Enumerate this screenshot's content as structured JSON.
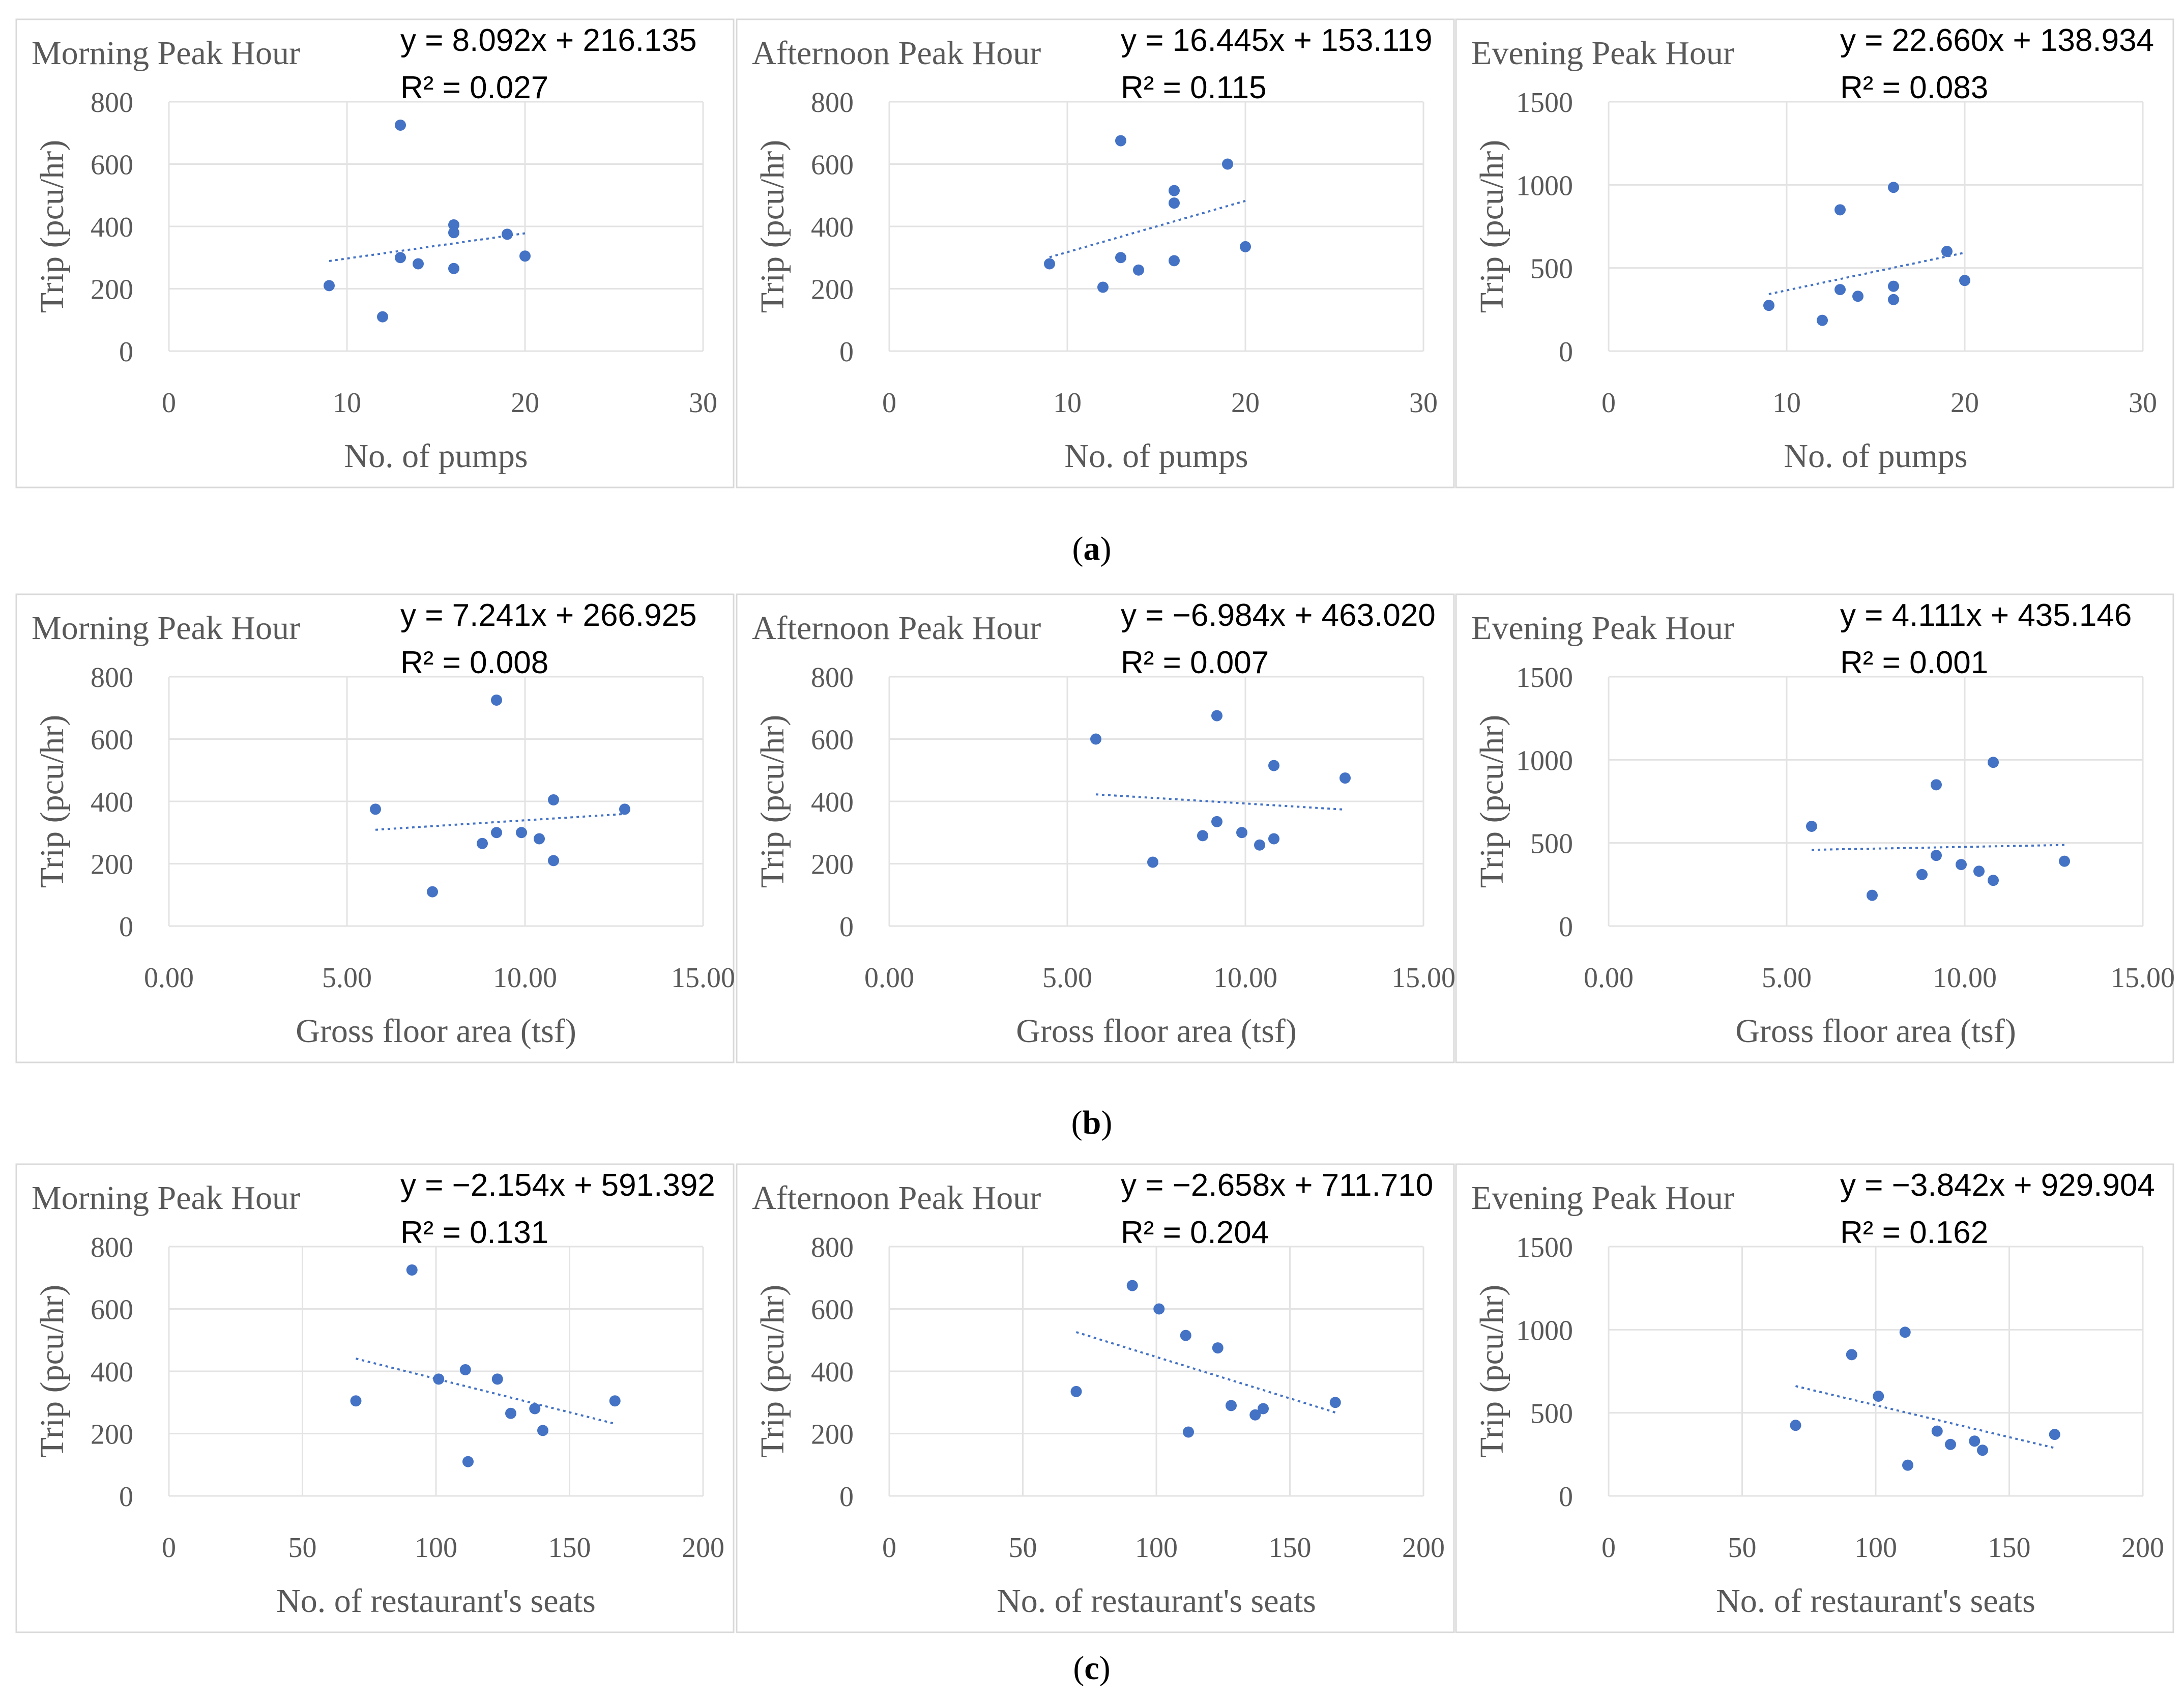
{
  "colors": {
    "point": "#4472c4",
    "trend": "#4472c4"
  },
  "rows": [
    {
      "caption": {
        "letter": "a"
      },
      "charts": [
        {
          "chart_data": {
            "type": "scatter",
            "title": "Morning Peak Hour",
            "equation": "y = 8.092x + 216.135",
            "r2": "R² = 0.027",
            "xlabel": "No. of pumps",
            "ylabel": "Trip (pcu/hr)",
            "xlim": [
              0,
              30
            ],
            "ylim": [
              0,
              800
            ],
            "xticks": [
              "0",
              "10",
              "20",
              "30"
            ],
            "xtick_values": [
              0,
              10,
              20,
              30
            ],
            "yticks": [
              "0",
              "200",
              "400",
              "600",
              "800"
            ],
            "ytick_values": [
              0,
              200,
              400,
              600,
              800
            ],
            "x": [
              9,
              12,
              13,
              13,
              14,
              16,
              16,
              16,
              19,
              20
            ],
            "y": [
              210,
              110,
              725,
              300,
              280,
              405,
              380,
              265,
              375,
              305
            ],
            "trend": {
              "slope": 8.092,
              "intercept": 216.135,
              "x_range": [
                9,
                20
              ]
            }
          }
        },
        {
          "chart_data": {
            "type": "scatter",
            "title": "Afternoon Peak Hour",
            "equation": "y = 16.445x + 153.119",
            "r2": "R² = 0.115",
            "xlabel": "No. of pumps",
            "ylabel": "Trip (pcu/hr)",
            "xlim": [
              0,
              30
            ],
            "ylim": [
              0,
              800
            ],
            "xticks": [
              "0",
              "10",
              "20",
              "30"
            ],
            "xtick_values": [
              0,
              10,
              20,
              30
            ],
            "yticks": [
              "0",
              "200",
              "400",
              "600",
              "800"
            ],
            "ytick_values": [
              0,
              200,
              400,
              600,
              800
            ],
            "x": [
              9,
              12,
              13,
              13,
              14,
              16,
              16,
              16,
              19,
              20
            ],
            "y": [
              280,
              205,
              675,
              300,
              260,
              515,
              475,
              290,
              600,
              335
            ],
            "trend": {
              "slope": 16.445,
              "intercept": 153.119,
              "x_range": [
                9,
                20
              ]
            }
          }
        },
        {
          "chart_data": {
            "type": "scatter",
            "title": "Evening Peak Hour",
            "equation": "y = 22.660x + 138.934",
            "r2": "R² = 0.083",
            "xlabel": "No. of pumps",
            "ylabel": "Trip (pcu/hr)",
            "xlim": [
              0,
              30
            ],
            "ylim": [
              0,
              1500
            ],
            "xticks": [
              "0",
              "10",
              "20",
              "30"
            ],
            "xtick_values": [
              0,
              10,
              20,
              30
            ],
            "yticks": [
              "0",
              "500",
              "1000",
              "1500"
            ],
            "ytick_values": [
              0,
              500,
              1000,
              1500
            ],
            "x": [
              9,
              12,
              13,
              13,
              14,
              16,
              16,
              16,
              19,
              20
            ],
            "y": [
              275,
              185,
              850,
              370,
              330,
              985,
              390,
              310,
              600,
              425
            ],
            "trend": {
              "slope": 22.66,
              "intercept": 138.934,
              "x_range": [
                9,
                20
              ]
            }
          }
        }
      ]
    },
    {
      "caption": {
        "letter": "b"
      },
      "charts": [
        {
          "chart_data": {
            "type": "scatter",
            "title": "Morning Peak Hour",
            "equation": "y = 7.241x + 266.925",
            "r2": "R² = 0.008",
            "xlabel": "Gross floor area (tsf)",
            "ylabel": "Trip (pcu/hr)",
            "xlim": [
              0,
              15
            ],
            "ylim": [
              0,
              800
            ],
            "xticks": [
              "0.00",
              "5.00",
              "10.00",
              "15.00"
            ],
            "xtick_values": [
              0,
              5,
              10,
              15
            ],
            "yticks": [
              "0",
              "200",
              "400",
              "600",
              "800"
            ],
            "ytick_values": [
              0,
              200,
              400,
              600,
              800
            ],
            "x": [
              5.8,
              7.4,
              8.8,
              9.2,
              9.9,
              10.4,
              10.8,
              10.8,
              12.8,
              9.2
            ],
            "y": [
              375,
              110,
              265,
              300,
              300,
              280,
              405,
              210,
              375,
              725
            ],
            "trend": {
              "slope": 7.241,
              "intercept": 266.925,
              "x_range": [
                5.8,
                12.8
              ]
            }
          }
        },
        {
          "chart_data": {
            "type": "scatter",
            "title": "Afternoon Peak Hour",
            "equation": "y = −6.984x + 463.020",
            "r2": "R² = 0.007",
            "xlabel": "Gross floor area (tsf)",
            "ylabel": "Trip (pcu/hr)",
            "xlim": [
              0,
              15
            ],
            "ylim": [
              0,
              800
            ],
            "xticks": [
              "0.00",
              "5.00",
              "10.00",
              "15.00"
            ],
            "xtick_values": [
              0,
              5,
              10,
              15
            ],
            "yticks": [
              "0",
              "200",
              "400",
              "600",
              "800"
            ],
            "ytick_values": [
              0,
              200,
              400,
              600,
              800
            ],
            "x": [
              5.8,
              7.4,
              8.8,
              9.2,
              9.2,
              9.9,
              10.4,
              10.8,
              10.8,
              12.8
            ],
            "y": [
              600,
              205,
              290,
              335,
              675,
              300,
              260,
              280,
              515,
              475
            ],
            "trend": {
              "slope": -6.984,
              "intercept": 463.02,
              "x_range": [
                5.8,
                12.8
              ]
            }
          }
        },
        {
          "chart_data": {
            "type": "scatter",
            "title": "Evening Peak Hour",
            "equation": "y = 4.111x + 435.146",
            "r2": "R² = 0.001",
            "xlabel": "Gross floor area (tsf)",
            "ylabel": "Trip (pcu/hr)",
            "xlim": [
              0,
              15
            ],
            "ylim": [
              0,
              1500
            ],
            "xticks": [
              "0.00",
              "5.00",
              "10.00",
              "15.00"
            ],
            "xtick_values": [
              0,
              5,
              10,
              15
            ],
            "yticks": [
              "0",
              "500",
              "1000",
              "1500"
            ],
            "ytick_values": [
              0,
              500,
              1000,
              1500
            ],
            "x": [
              5.7,
              7.4,
              8.8,
              9.2,
              9.2,
              9.9,
              10.4,
              10.8,
              10.8,
              12.8
            ],
            "y": [
              600,
              185,
              310,
              425,
              850,
              370,
              330,
              275,
              985,
              390
            ],
            "trend": {
              "slope": 4.111,
              "intercept": 435.146,
              "x_range": [
                5.7,
                12.8
              ]
            }
          }
        }
      ]
    },
    {
      "caption": {
        "letter": "c"
      },
      "charts": [
        {
          "chart_data": {
            "type": "scatter",
            "title": "Morning Peak Hour",
            "equation": "y = −2.154x + 591.392",
            "r2": "R² = 0.131",
            "xlabel": "No. of restaurant's seats",
            "ylabel": "Trip (pcu/hr)",
            "xlim": [
              0,
              200
            ],
            "ylim": [
              0,
              800
            ],
            "xticks": [
              "0",
              "50",
              "100",
              "150",
              "200"
            ],
            "xtick_values": [
              0,
              50,
              100,
              150,
              200
            ],
            "yticks": [
              "0",
              "200",
              "400",
              "600",
              "800"
            ],
            "ytick_values": [
              0,
              200,
              400,
              600,
              800
            ],
            "x": [
              70,
              91,
              101,
              111,
              112,
              123,
              128,
              137,
              140,
              167
            ],
            "y": [
              305,
              725,
              375,
              405,
              110,
              375,
              265,
              280,
              210,
              305
            ],
            "trend": {
              "slope": -2.154,
              "intercept": 591.392,
              "x_range": [
                70,
                167
              ]
            }
          }
        },
        {
          "chart_data": {
            "type": "scatter",
            "title": "Afternoon Peak Hour",
            "equation": "y = −2.658x + 711.710",
            "r2": "R² = 0.204",
            "xlabel": "No. of restaurant's seats",
            "ylabel": "Trip (pcu/hr)",
            "xlim": [
              0,
              200
            ],
            "ylim": [
              0,
              800
            ],
            "xticks": [
              "0",
              "50",
              "100",
              "150",
              "200"
            ],
            "xtick_values": [
              0,
              50,
              100,
              150,
              200
            ],
            "yticks": [
              "0",
              "200",
              "400",
              "600",
              "800"
            ],
            "ytick_values": [
              0,
              200,
              400,
              600,
              800
            ],
            "x": [
              70,
              91,
              101,
              111,
              112,
              123,
              128,
              137,
              140,
              167
            ],
            "y": [
              335,
              675,
              600,
              515,
              205,
              475,
              290,
              260,
              280,
              300
            ],
            "trend": {
              "slope": -2.658,
              "intercept": 711.71,
              "x_range": [
                70,
                167
              ]
            }
          }
        },
        {
          "chart_data": {
            "type": "scatter",
            "title": "Evening Peak Hour",
            "equation": "y = −3.842x + 929.904",
            "r2": "R² = 0.162",
            "xlabel": "No. of restaurant's seats",
            "ylabel": "Trip (pcu/hr)",
            "xlim": [
              0,
              200
            ],
            "ylim": [
              0,
              1500
            ],
            "xticks": [
              "0",
              "50",
              "100",
              "150",
              "200"
            ],
            "xtick_values": [
              0,
              50,
              100,
              150,
              200
            ],
            "yticks": [
              "0",
              "500",
              "1000",
              "1500"
            ],
            "ytick_values": [
              0,
              500,
              1000,
              1500
            ],
            "x": [
              70,
              91,
              101,
              111,
              112,
              123,
              128,
              137,
              140,
              167
            ],
            "y": [
              425,
              850,
              600,
              985,
              185,
              390,
              310,
              330,
              275,
              370
            ],
            "trend": {
              "slope": -3.842,
              "intercept": 929.904,
              "x_range": [
                70,
                167
              ]
            }
          }
        }
      ]
    }
  ]
}
